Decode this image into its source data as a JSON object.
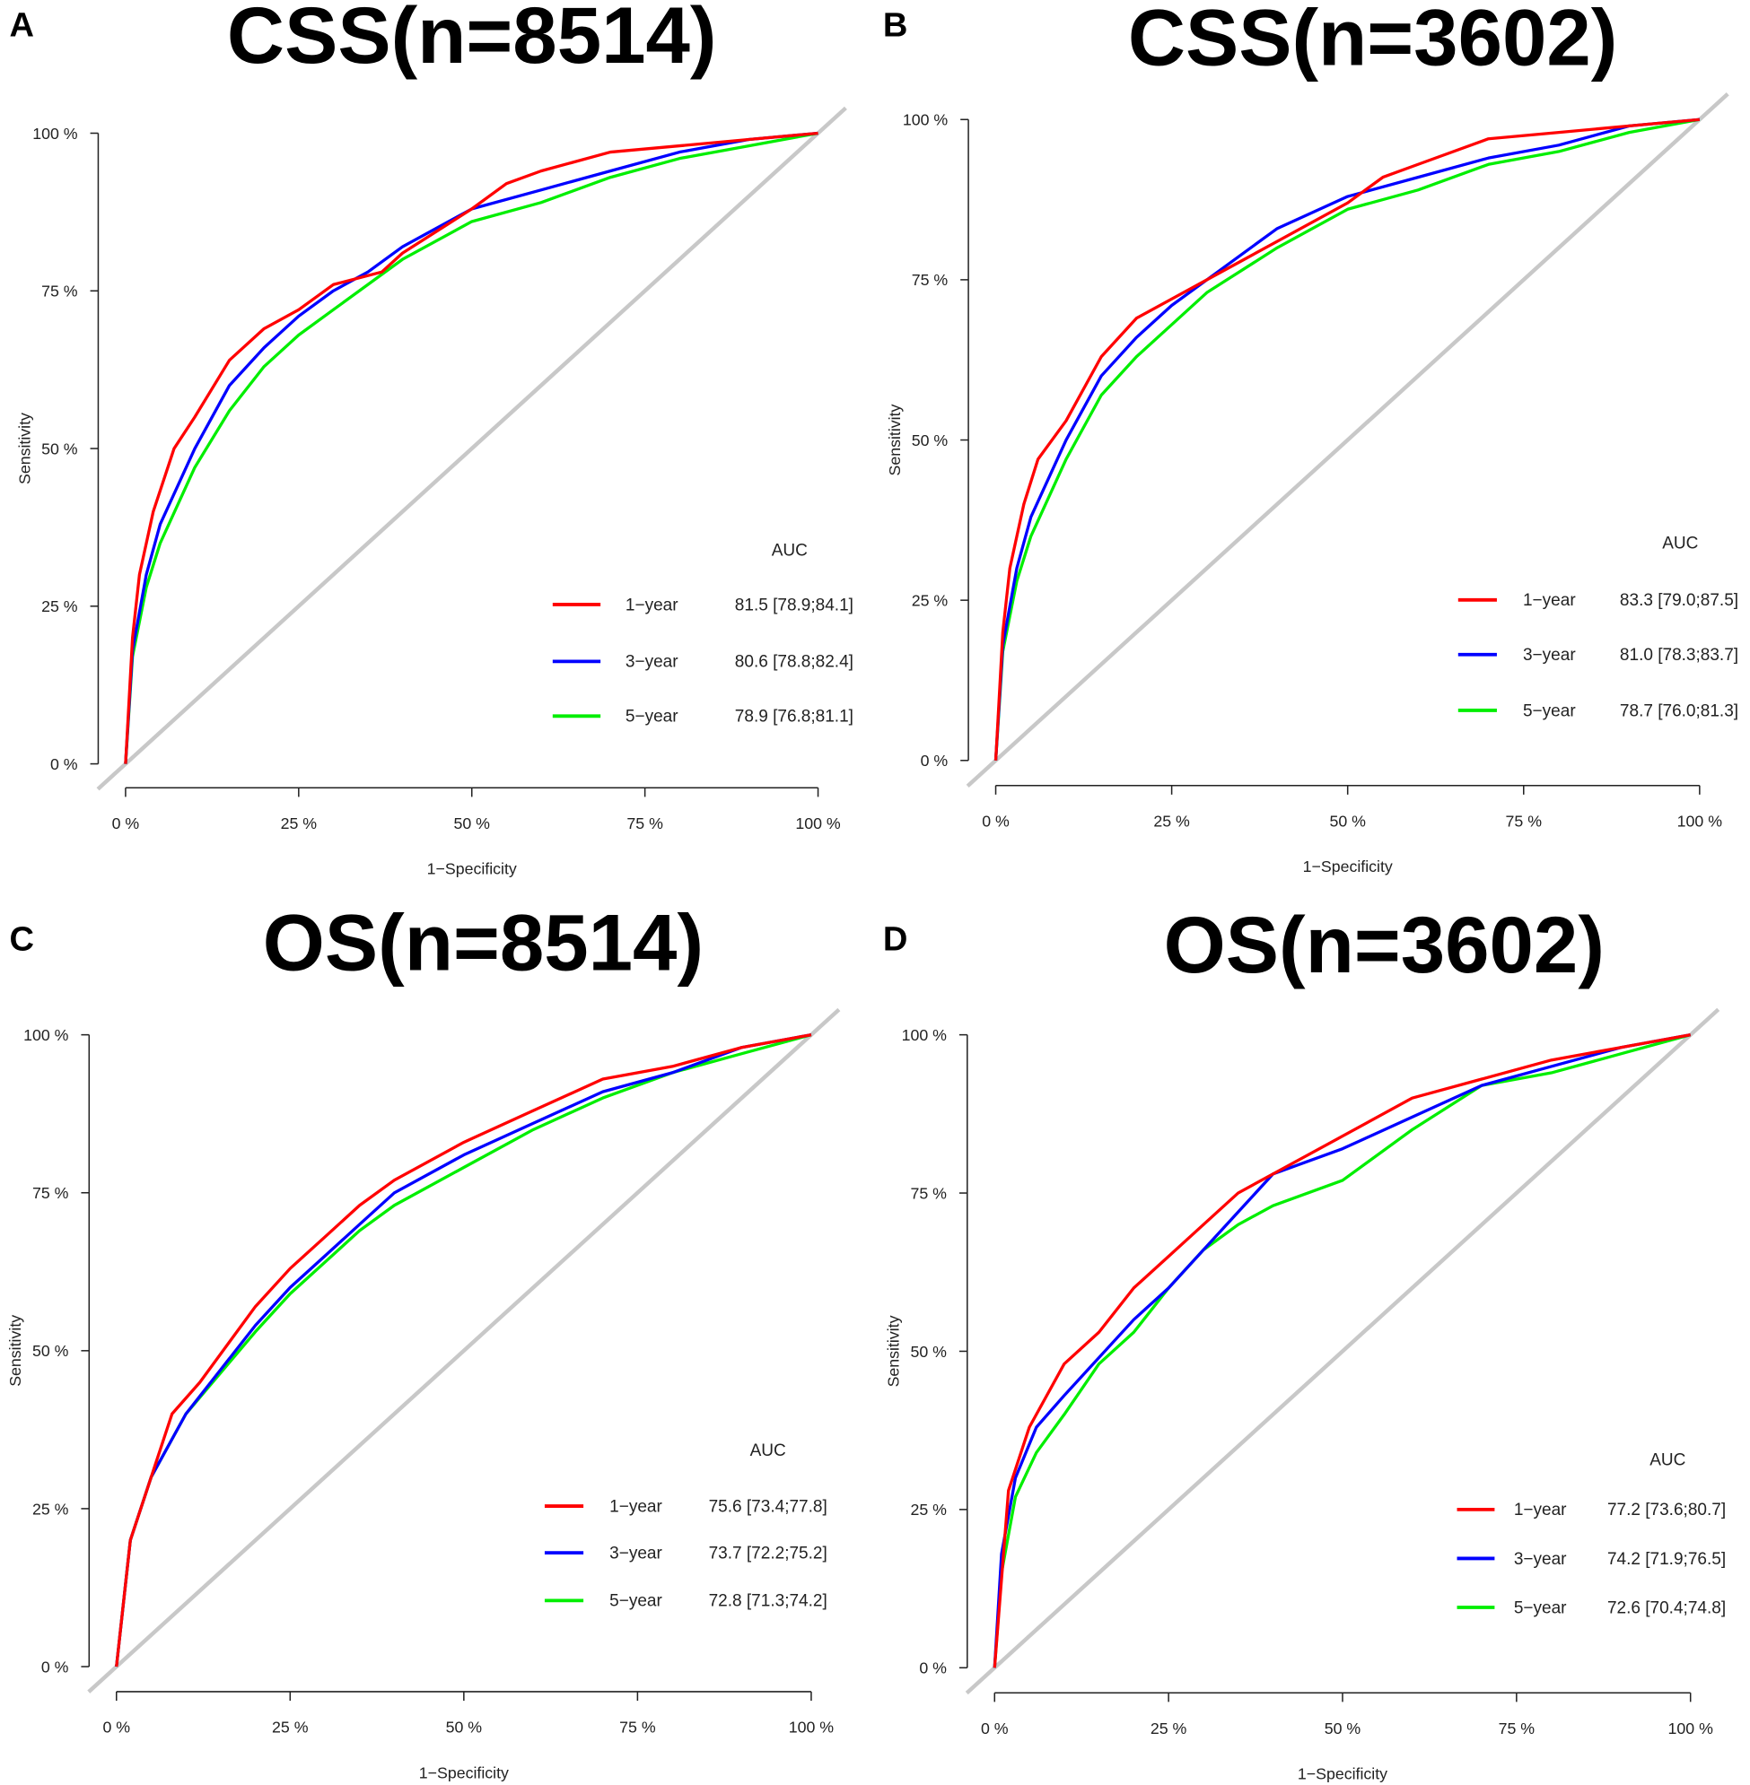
{
  "chart_data": [
    {
      "type": "line",
      "panel": "A",
      "title": "CSS(n=8514)",
      "xlabel": "1−Specificity",
      "ylabel": "Sensitivity",
      "xlim": [
        0,
        1
      ],
      "ylim": [
        0,
        1
      ],
      "xticks": [
        "0 %",
        "25 %",
        "50 %",
        "75 %",
        "100 %"
      ],
      "yticks": [
        "0 %",
        "25 %",
        "50 %",
        "75 %",
        "100 %"
      ],
      "legend_title": "AUC",
      "legend_placement": "bottom-right",
      "series": [
        {
          "name": "1−year",
          "auc": "81.5 [78.9;84.1]",
          "color": "#ff0000",
          "points": [
            [
              0,
              0
            ],
            [
              0.01,
              0.2
            ],
            [
              0.02,
              0.3
            ],
            [
              0.04,
              0.4
            ],
            [
              0.07,
              0.5
            ],
            [
              0.1,
              0.55
            ],
            [
              0.15,
              0.64
            ],
            [
              0.2,
              0.69
            ],
            [
              0.25,
              0.72
            ],
            [
              0.3,
              0.76
            ],
            [
              0.37,
              0.78
            ],
            [
              0.4,
              0.81
            ],
            [
              0.5,
              0.88
            ],
            [
              0.55,
              0.92
            ],
            [
              0.6,
              0.94
            ],
            [
              0.7,
              0.97
            ],
            [
              0.8,
              0.98
            ],
            [
              0.9,
              0.99
            ],
            [
              1,
              1
            ]
          ]
        },
        {
          "name": "3−year",
          "auc": "80.6 [78.8;82.4]",
          "color": "#0000ff",
          "points": [
            [
              0,
              0
            ],
            [
              0.01,
              0.18
            ],
            [
              0.03,
              0.3
            ],
            [
              0.05,
              0.38
            ],
            [
              0.1,
              0.5
            ],
            [
              0.15,
              0.6
            ],
            [
              0.2,
              0.66
            ],
            [
              0.25,
              0.71
            ],
            [
              0.3,
              0.75
            ],
            [
              0.35,
              0.78
            ],
            [
              0.4,
              0.82
            ],
            [
              0.5,
              0.88
            ],
            [
              0.6,
              0.91
            ],
            [
              0.7,
              0.94
            ],
            [
              0.8,
              0.97
            ],
            [
              0.9,
              0.99
            ],
            [
              1,
              1
            ]
          ]
        },
        {
          "name": "5−year",
          "auc": "78.9 [76.8;81.1]",
          "color": "#00ee00",
          "points": [
            [
              0,
              0
            ],
            [
              0.01,
              0.17
            ],
            [
              0.03,
              0.28
            ],
            [
              0.05,
              0.35
            ],
            [
              0.1,
              0.47
            ],
            [
              0.15,
              0.56
            ],
            [
              0.2,
              0.63
            ],
            [
              0.25,
              0.68
            ],
            [
              0.3,
              0.72
            ],
            [
              0.4,
              0.8
            ],
            [
              0.5,
              0.86
            ],
            [
              0.6,
              0.89
            ],
            [
              0.7,
              0.93
            ],
            [
              0.8,
              0.96
            ],
            [
              0.9,
              0.98
            ],
            [
              1,
              1
            ]
          ]
        }
      ]
    },
    {
      "type": "line",
      "panel": "B",
      "title": "CSS(n=3602)",
      "xlabel": "1−Specificity",
      "ylabel": "Sensitivity",
      "xlim": [
        0,
        1
      ],
      "ylim": [
        0,
        1
      ],
      "xticks": [
        "0 %",
        "25 %",
        "50 %",
        "75 %",
        "100 %"
      ],
      "yticks": [
        "0 %",
        "25 %",
        "50 %",
        "75 %",
        "100 %"
      ],
      "legend_title": "AUC",
      "legend_placement": "bottom-right",
      "series": [
        {
          "name": "1−year",
          "auc": "83.3 [79.0;87.5]",
          "color": "#ff0000",
          "points": [
            [
              0,
              0
            ],
            [
              0.01,
              0.2
            ],
            [
              0.02,
              0.3
            ],
            [
              0.04,
              0.4
            ],
            [
              0.06,
              0.47
            ],
            [
              0.1,
              0.53
            ],
            [
              0.15,
              0.63
            ],
            [
              0.2,
              0.69
            ],
            [
              0.25,
              0.72
            ],
            [
              0.35,
              0.78
            ],
            [
              0.4,
              0.81
            ],
            [
              0.5,
              0.87
            ],
            [
              0.55,
              0.91
            ],
            [
              0.6,
              0.93
            ],
            [
              0.7,
              0.97
            ],
            [
              0.8,
              0.98
            ],
            [
              0.9,
              0.99
            ],
            [
              1,
              1
            ]
          ]
        },
        {
          "name": "3−year",
          "auc": "81.0 [78.3;83.7]",
          "color": "#0000ff",
          "points": [
            [
              0,
              0
            ],
            [
              0.01,
              0.18
            ],
            [
              0.03,
              0.3
            ],
            [
              0.05,
              0.38
            ],
            [
              0.1,
              0.5
            ],
            [
              0.15,
              0.6
            ],
            [
              0.2,
              0.66
            ],
            [
              0.25,
              0.71
            ],
            [
              0.3,
              0.75
            ],
            [
              0.35,
              0.79
            ],
            [
              0.4,
              0.83
            ],
            [
              0.5,
              0.88
            ],
            [
              0.6,
              0.91
            ],
            [
              0.7,
              0.94
            ],
            [
              0.8,
              0.96
            ],
            [
              0.9,
              0.99
            ],
            [
              1,
              1
            ]
          ]
        },
        {
          "name": "5−year",
          "auc": "78.7 [76.0;81.3]",
          "color": "#00ee00",
          "points": [
            [
              0,
              0
            ],
            [
              0.01,
              0.17
            ],
            [
              0.03,
              0.28
            ],
            [
              0.05,
              0.35
            ],
            [
              0.1,
              0.47
            ],
            [
              0.15,
              0.57
            ],
            [
              0.2,
              0.63
            ],
            [
              0.25,
              0.68
            ],
            [
              0.3,
              0.73
            ],
            [
              0.4,
              0.8
            ],
            [
              0.5,
              0.86
            ],
            [
              0.6,
              0.89
            ],
            [
              0.7,
              0.93
            ],
            [
              0.8,
              0.95
            ],
            [
              0.9,
              0.98
            ],
            [
              1,
              1
            ]
          ]
        }
      ]
    },
    {
      "type": "line",
      "panel": "C",
      "title": "OS(n=8514)",
      "xlabel": "1−Specificity",
      "ylabel": "Sensitivity",
      "xlim": [
        0,
        1
      ],
      "ylim": [
        0,
        1
      ],
      "xticks": [
        "0 %",
        "25 %",
        "50 %",
        "75 %",
        "100 %"
      ],
      "yticks": [
        "0 %",
        "25 %",
        "50 %",
        "75 %",
        "100 %"
      ],
      "legend_title": "AUC",
      "legend_placement": "bottom-right",
      "series": [
        {
          "name": "1−year",
          "auc": "75.6 [73.4;77.8]",
          "color": "#ff0000",
          "points": [
            [
              0,
              0
            ],
            [
              0.02,
              0.2
            ],
            [
              0.05,
              0.3
            ],
            [
              0.08,
              0.4
            ],
            [
              0.12,
              0.45
            ],
            [
              0.2,
              0.57
            ],
            [
              0.25,
              0.63
            ],
            [
              0.3,
              0.68
            ],
            [
              0.35,
              0.73
            ],
            [
              0.4,
              0.77
            ],
            [
              0.5,
              0.83
            ],
            [
              0.6,
              0.88
            ],
            [
              0.7,
              0.93
            ],
            [
              0.8,
              0.95
            ],
            [
              0.9,
              0.98
            ],
            [
              1,
              1
            ]
          ]
        },
        {
          "name": "3−year",
          "auc": "73.7 [72.2;75.2]",
          "color": "#0000ff",
          "points": [
            [
              0,
              0
            ],
            [
              0.02,
              0.2
            ],
            [
              0.05,
              0.3
            ],
            [
              0.1,
              0.4
            ],
            [
              0.2,
              0.54
            ],
            [
              0.25,
              0.6
            ],
            [
              0.3,
              0.65
            ],
            [
              0.35,
              0.7
            ],
            [
              0.4,
              0.75
            ],
            [
              0.5,
              0.81
            ],
            [
              0.6,
              0.86
            ],
            [
              0.7,
              0.91
            ],
            [
              0.8,
              0.94
            ],
            [
              0.9,
              0.98
            ],
            [
              1,
              1
            ]
          ]
        },
        {
          "name": "5−year",
          "auc": "72.8 [71.3;74.2]",
          "color": "#00ee00",
          "points": [
            [
              0,
              0
            ],
            [
              0.02,
              0.2
            ],
            [
              0.05,
              0.3
            ],
            [
              0.1,
              0.4
            ],
            [
              0.2,
              0.53
            ],
            [
              0.25,
              0.59
            ],
            [
              0.3,
              0.64
            ],
            [
              0.35,
              0.69
            ],
            [
              0.4,
              0.73
            ],
            [
              0.5,
              0.79
            ],
            [
              0.6,
              0.85
            ],
            [
              0.7,
              0.9
            ],
            [
              0.8,
              0.94
            ],
            [
              0.9,
              0.97
            ],
            [
              1,
              1
            ]
          ]
        }
      ]
    },
    {
      "type": "line",
      "panel": "D",
      "title": "OS(n=3602)",
      "xlabel": "1−Specificity",
      "ylabel": "Sensitivity",
      "xlim": [
        0,
        1
      ],
      "ylim": [
        0,
        1
      ],
      "xticks": [
        "0 %",
        "25 %",
        "50 %",
        "75 %",
        "100 %"
      ],
      "yticks": [
        "0 %",
        "25 %",
        "50 %",
        "75 %",
        "100 %"
      ],
      "legend_title": "AUC",
      "legend_placement": "bottom-right",
      "series": [
        {
          "name": "1−year",
          "auc": "77.2 [73.6;80.7]",
          "color": "#ff0000",
          "points": [
            [
              0,
              0
            ],
            [
              0.02,
              0.28
            ],
            [
              0.05,
              0.38
            ],
            [
              0.1,
              0.48
            ],
            [
              0.15,
              0.53
            ],
            [
              0.2,
              0.6
            ],
            [
              0.25,
              0.65
            ],
            [
              0.3,
              0.7
            ],
            [
              0.35,
              0.75
            ],
            [
              0.4,
              0.78
            ],
            [
              0.5,
              0.84
            ],
            [
              0.6,
              0.9
            ],
            [
              0.7,
              0.93
            ],
            [
              0.8,
              0.96
            ],
            [
              0.9,
              0.98
            ],
            [
              1,
              1
            ]
          ]
        },
        {
          "name": "3−year",
          "auc": "74.2 [71.9;76.5]",
          "color": "#0000ff",
          "points": [
            [
              0,
              0
            ],
            [
              0.01,
              0.18
            ],
            [
              0.03,
              0.3
            ],
            [
              0.06,
              0.38
            ],
            [
              0.1,
              0.43
            ],
            [
              0.15,
              0.49
            ],
            [
              0.2,
              0.55
            ],
            [
              0.25,
              0.6
            ],
            [
              0.3,
              0.66
            ],
            [
              0.35,
              0.72
            ],
            [
              0.4,
              0.78
            ],
            [
              0.5,
              0.82
            ],
            [
              0.6,
              0.87
            ],
            [
              0.7,
              0.92
            ],
            [
              0.8,
              0.95
            ],
            [
              0.9,
              0.98
            ],
            [
              1,
              1
            ]
          ]
        },
        {
          "name": "5−year",
          "auc": "72.6 [70.4;74.8]",
          "color": "#00ee00",
          "points": [
            [
              0,
              0
            ],
            [
              0.01,
              0.15
            ],
            [
              0.03,
              0.27
            ],
            [
              0.06,
              0.34
            ],
            [
              0.1,
              0.4
            ],
            [
              0.15,
              0.48
            ],
            [
              0.2,
              0.53
            ],
            [
              0.25,
              0.6
            ],
            [
              0.3,
              0.66
            ],
            [
              0.35,
              0.7
            ],
            [
              0.4,
              0.73
            ],
            [
              0.5,
              0.77
            ],
            [
              0.6,
              0.85
            ],
            [
              0.7,
              0.92
            ],
            [
              0.8,
              0.94
            ],
            [
              0.9,
              0.97
            ],
            [
              1,
              1
            ]
          ]
        }
      ]
    }
  ]
}
